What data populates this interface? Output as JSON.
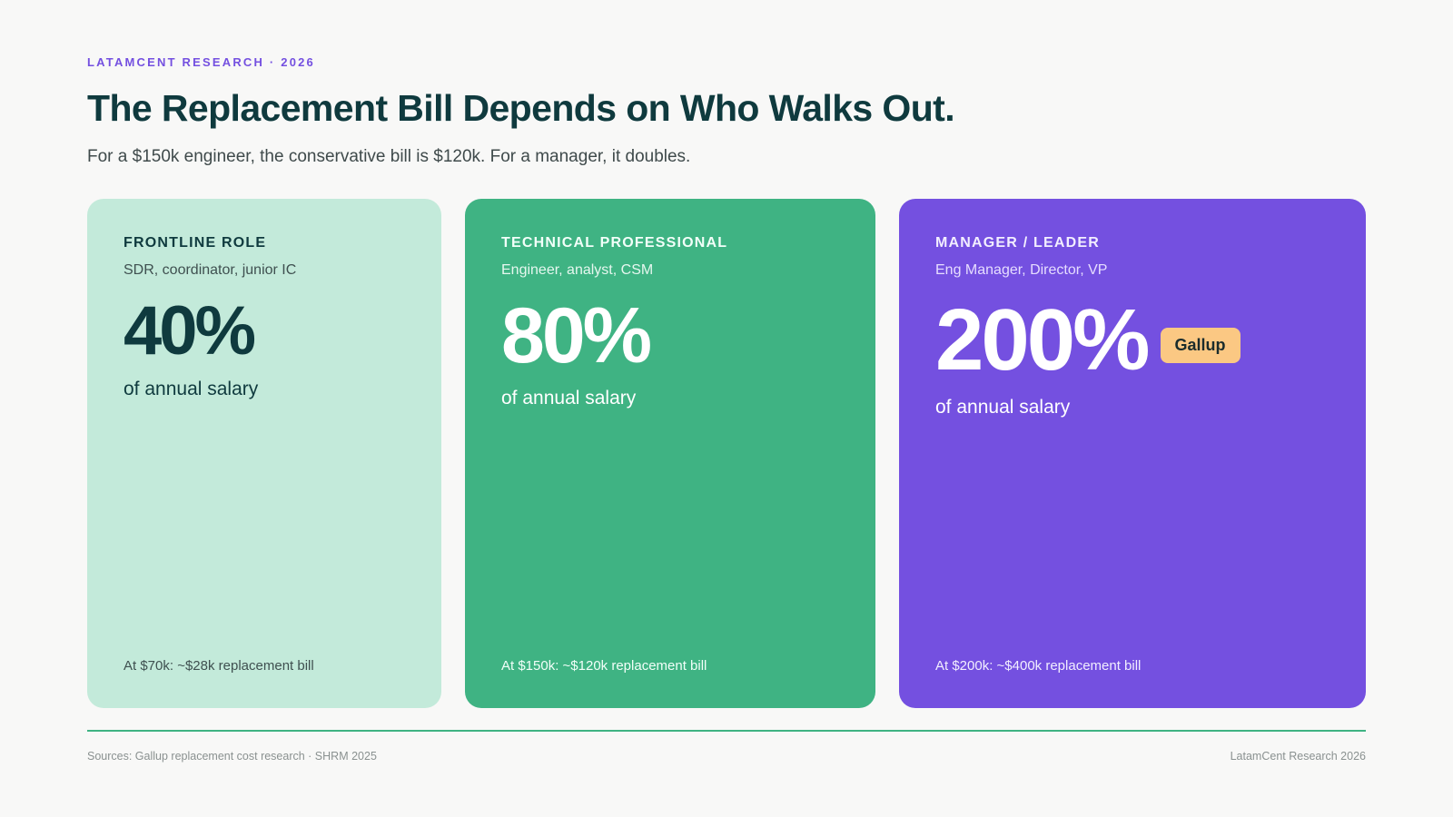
{
  "header": {
    "eyebrow": "LATAMCENT RESEARCH · 2026",
    "title": "The Replacement Bill Depends on Who Walks Out.",
    "subtitle": "For a $150k engineer, the conservative bill is $120k. For a manager, it doubles."
  },
  "cards": [
    {
      "title": "FRONTLINE ROLE",
      "roles": "SDR, coordinator, junior IC",
      "stat": "40%",
      "unit": "of annual salary",
      "foot": "At $70k: ~$28k replacement bill",
      "color": "#c3eada"
    },
    {
      "title": "TECHNICAL PROFESSIONAL",
      "roles": "Engineer, analyst, CSM",
      "stat": "80%",
      "unit": "of annual salary",
      "foot": "At $150k: ~$120k replacement bill",
      "color": "#3fb383"
    },
    {
      "title": "MANAGER / LEADER",
      "roles": "Eng Manager, Director, VP",
      "stat": "200%",
      "badge": "Gallup",
      "unit": "of annual salary",
      "foot": "At $200k: ~$400k replacement bill",
      "color": "#7450e0"
    }
  ],
  "footer": {
    "sources": "Sources: Gallup replacement cost research · SHRM 2025",
    "brand": "LatamCent Research 2026"
  },
  "colors": {
    "accent_purple": "#7450e0",
    "accent_green": "#3fb383",
    "title_dark": "#0f3a3e",
    "badge": "#fbc883"
  }
}
